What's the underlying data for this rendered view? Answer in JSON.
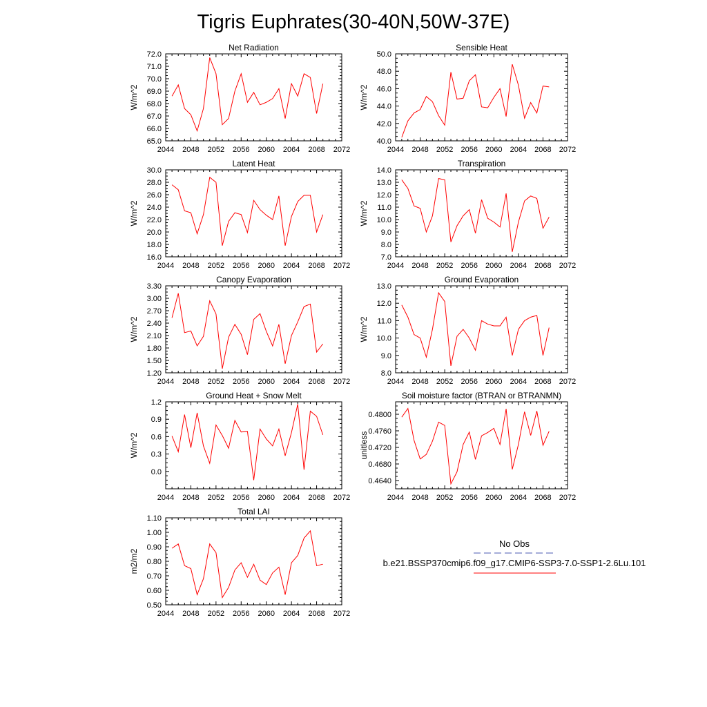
{
  "figure": {
    "title": "Tigris Euphrates(30-40N,50W-37E)"
  },
  "legend": {
    "entries": [
      {
        "label": "No Obs",
        "color": "#4a5ab0",
        "dash": true
      },
      {
        "label": "b.e21.BSSP370cmip6.f09_g17.CMIP6-SSP3-7.0-SSP1-2.6Lu.101",
        "color": "#ff0000",
        "dash": false
      }
    ]
  },
  "chart_data": [
    {
      "type": "line",
      "title": "Net Radiation",
      "ylabel": "W/m^2",
      "xlim": [
        2044,
        2072
      ],
      "xticks": [
        2044,
        2048,
        2052,
        2056,
        2060,
        2064,
        2068,
        2072
      ],
      "ylim": [
        65.0,
        72.0
      ],
      "yticks": [
        "65.0",
        "66.0",
        "67.0",
        "68.0",
        "69.0",
        "70.0",
        "71.0",
        "72.0"
      ],
      "series": [
        {
          "color": "#ff0000",
          "x": [
            2045,
            2046,
            2047,
            2048,
            2049,
            2050,
            2051,
            2052,
            2053,
            2054,
            2055,
            2056,
            2057,
            2058,
            2059,
            2060,
            2061,
            2062,
            2063,
            2064,
            2065,
            2066,
            2067,
            2068,
            2069
          ],
          "values": [
            68.6,
            69.5,
            67.6,
            67.1,
            65.8,
            67.6,
            71.7,
            70.4,
            66.3,
            66.8,
            69.0,
            70.4,
            68.1,
            68.9,
            67.9,
            68.1,
            68.4,
            69.2,
            66.8,
            69.6,
            68.6,
            70.4,
            70.1,
            67.2,
            69.6
          ]
        }
      ]
    },
    {
      "type": "line",
      "title": "Sensible Heat",
      "ylabel": "W/m^2",
      "xlim": [
        2044,
        2072
      ],
      "xticks": [
        2044,
        2048,
        2052,
        2056,
        2060,
        2064,
        2068,
        2072
      ],
      "ylim": [
        40.0,
        50.0
      ],
      "yticks": [
        "40.0",
        "42.0",
        "44.0",
        "46.0",
        "48.0",
        "50.0"
      ],
      "series": [
        {
          "color": "#ff0000",
          "x": [
            2045,
            2046,
            2047,
            2048,
            2049,
            2050,
            2051,
            2052,
            2053,
            2054,
            2055,
            2056,
            2057,
            2058,
            2059,
            2060,
            2061,
            2062,
            2063,
            2064,
            2065,
            2066,
            2067,
            2068,
            2069
          ],
          "values": [
            40.4,
            42.3,
            43.2,
            43.6,
            45.1,
            44.5,
            42.9,
            41.8,
            47.9,
            44.8,
            44.9,
            46.9,
            47.6,
            43.9,
            43.8,
            45.0,
            46.0,
            42.8,
            48.8,
            46.4,
            42.6,
            44.4,
            43.2,
            46.3,
            46.2
          ]
        }
      ]
    },
    {
      "type": "line",
      "title": "Latent Heat",
      "ylabel": "W/m^2",
      "xlim": [
        2044,
        2072
      ],
      "xticks": [
        2044,
        2048,
        2052,
        2056,
        2060,
        2064,
        2068,
        2072
      ],
      "ylim": [
        16.0,
        30.0
      ],
      "yticks": [
        "16.0",
        "18.0",
        "20.0",
        "22.0",
        "24.0",
        "26.0",
        "28.0",
        "30.0"
      ],
      "series": [
        {
          "color": "#ff0000",
          "x": [
            2045,
            2046,
            2047,
            2048,
            2049,
            2050,
            2051,
            2052,
            2053,
            2054,
            2055,
            2056,
            2057,
            2058,
            2059,
            2060,
            2061,
            2062,
            2063,
            2064,
            2065,
            2066,
            2067,
            2068,
            2069
          ],
          "values": [
            27.6,
            26.8,
            23.4,
            23.1,
            19.7,
            22.8,
            28.8,
            28.0,
            17.8,
            21.7,
            23.1,
            22.8,
            19.9,
            25.1,
            23.6,
            22.7,
            22.0,
            25.8,
            17.8,
            22.5,
            24.9,
            25.9,
            25.9,
            20.0,
            22.8
          ]
        }
      ]
    },
    {
      "type": "line",
      "title": "Transpiration",
      "ylabel": "W/m^2",
      "xlim": [
        2044,
        2072
      ],
      "xticks": [
        2044,
        2048,
        2052,
        2056,
        2060,
        2064,
        2068,
        2072
      ],
      "ylim": [
        7.0,
        14.0
      ],
      "yticks": [
        "7.0",
        "8.0",
        "9.0",
        "10.0",
        "11.0",
        "12.0",
        "13.0",
        "14.0"
      ],
      "series": [
        {
          "color": "#ff0000",
          "x": [
            2045,
            2046,
            2047,
            2048,
            2049,
            2050,
            2051,
            2052,
            2053,
            2054,
            2055,
            2056,
            2057,
            2058,
            2059,
            2060,
            2061,
            2062,
            2063,
            2064,
            2065,
            2066,
            2067,
            2068,
            2069
          ],
          "values": [
            13.2,
            12.5,
            11.1,
            10.9,
            9.0,
            10.3,
            13.3,
            13.2,
            8.2,
            9.5,
            10.3,
            10.8,
            8.9,
            11.6,
            10.1,
            9.8,
            9.4,
            12.1,
            7.4,
            9.8,
            11.5,
            11.9,
            11.7,
            9.3,
            10.2
          ]
        }
      ]
    },
    {
      "type": "line",
      "title": "Canopy Evaporation",
      "ylabel": "W/m^2",
      "xlim": [
        2044,
        2072
      ],
      "xticks": [
        2044,
        2048,
        2052,
        2056,
        2060,
        2064,
        2068,
        2072
      ],
      "ylim": [
        1.2,
        3.3
      ],
      "yticks": [
        "1.20",
        "1.50",
        "1.80",
        "2.10",
        "2.40",
        "2.70",
        "3.00",
        "3.30"
      ],
      "series": [
        {
          "color": "#ff0000",
          "x": [
            2045,
            2046,
            2047,
            2048,
            2049,
            2050,
            2051,
            2052,
            2053,
            2054,
            2055,
            2056,
            2057,
            2058,
            2059,
            2060,
            2061,
            2062,
            2063,
            2064,
            2065,
            2066,
            2067,
            2068,
            2069
          ],
          "values": [
            2.53,
            3.12,
            2.17,
            2.21,
            1.85,
            2.08,
            2.94,
            2.62,
            1.3,
            2.06,
            2.37,
            2.13,
            1.64,
            2.49,
            2.63,
            2.2,
            1.85,
            2.37,
            1.42,
            2.1,
            2.43,
            2.8,
            2.86,
            1.7,
            1.9
          ]
        }
      ]
    },
    {
      "type": "line",
      "title": "Ground Evaporation",
      "ylabel": "W/m^2",
      "xlim": [
        2044,
        2072
      ],
      "xticks": [
        2044,
        2048,
        2052,
        2056,
        2060,
        2064,
        2068,
        2072
      ],
      "ylim": [
        8.0,
        13.0
      ],
      "yticks": [
        "8.0",
        "9.0",
        "10.0",
        "11.0",
        "12.0",
        "13.0"
      ],
      "series": [
        {
          "color": "#ff0000",
          "x": [
            2045,
            2046,
            2047,
            2048,
            2049,
            2050,
            2051,
            2052,
            2053,
            2054,
            2055,
            2056,
            2057,
            2058,
            2059,
            2060,
            2061,
            2062,
            2063,
            2064,
            2065,
            2066,
            2067,
            2068,
            2069
          ],
          "values": [
            11.9,
            11.2,
            10.2,
            10.0,
            8.9,
            10.5,
            12.6,
            12.1,
            8.4,
            10.1,
            10.5,
            10.0,
            9.3,
            11.0,
            10.8,
            10.7,
            10.7,
            11.2,
            9.0,
            10.5,
            11.0,
            11.2,
            11.3,
            9.0,
            10.6
          ]
        }
      ]
    },
    {
      "type": "line",
      "title": "Ground Heat + Snow Melt",
      "ylabel": "W/m^2",
      "xlim": [
        2044,
        2072
      ],
      "xticks": [
        2044,
        2048,
        2052,
        2056,
        2060,
        2064,
        2068,
        2072
      ],
      "ylim": [
        -0.3,
        1.2
      ],
      "yticks": [
        "0.0",
        "0.3",
        "0.6",
        "0.9",
        "1.2"
      ],
      "series": [
        {
          "color": "#ff0000",
          "x": [
            2045,
            2046,
            2047,
            2048,
            2049,
            2050,
            2051,
            2052,
            2053,
            2054,
            2055,
            2056,
            2057,
            2058,
            2059,
            2060,
            2061,
            2062,
            2063,
            2064,
            2065,
            2066,
            2067,
            2068,
            2069
          ],
          "values": [
            0.61,
            0.34,
            0.98,
            0.41,
            1.01,
            0.44,
            0.14,
            0.8,
            0.62,
            0.4,
            0.88,
            0.68,
            0.69,
            -0.15,
            0.73,
            0.56,
            0.44,
            0.73,
            0.27,
            0.67,
            1.16,
            0.03,
            1.04,
            0.95,
            0.63
          ]
        }
      ]
    },
    {
      "type": "line",
      "title": "Soil moisture factor (BTRAN or BTRANMN)",
      "ylabel": "unitless",
      "xlim": [
        2044,
        2072
      ],
      "xticks": [
        2044,
        2048,
        2052,
        2056,
        2060,
        2064,
        2068,
        2072
      ],
      "ylim": [
        0.462,
        0.483
      ],
      "yticks": [
        "0.4640",
        "0.4680",
        "0.4720",
        "0.4760",
        "0.4800"
      ],
      "series": [
        {
          "color": "#ff0000",
          "x": [
            2045,
            2046,
            2047,
            2048,
            2049,
            2050,
            2051,
            2052,
            2053,
            2054,
            2055,
            2056,
            2057,
            2058,
            2059,
            2060,
            2061,
            2062,
            2063,
            2064,
            2065,
            2066,
            2067,
            2068,
            2069
          ],
          "values": [
            0.4793,
            0.4814,
            0.4737,
            0.4692,
            0.4703,
            0.4735,
            0.4781,
            0.4773,
            0.4632,
            0.4661,
            0.4727,
            0.4757,
            0.4691,
            0.4748,
            0.4756,
            0.4766,
            0.4727,
            0.4813,
            0.4667,
            0.4727,
            0.4806,
            0.4749,
            0.4808,
            0.4725,
            0.4759
          ]
        }
      ]
    },
    {
      "type": "line",
      "title": "Total LAI",
      "ylabel": "m2/m2",
      "xlim": [
        2044,
        2072
      ],
      "xticks": [
        2044,
        2048,
        2052,
        2056,
        2060,
        2064,
        2068,
        2072
      ],
      "ylim": [
        0.5,
        1.1
      ],
      "yticks": [
        "0.50",
        "0.60",
        "0.70",
        "0.80",
        "0.90",
        "1.00",
        "1.10"
      ],
      "series": [
        {
          "color": "#ff0000",
          "x": [
            2045,
            2046,
            2047,
            2048,
            2049,
            2050,
            2051,
            2052,
            2053,
            2054,
            2055,
            2056,
            2057,
            2058,
            2059,
            2060,
            2061,
            2062,
            2063,
            2064,
            2065,
            2066,
            2067,
            2068,
            2069
          ],
          "values": [
            0.89,
            0.92,
            0.77,
            0.75,
            0.57,
            0.68,
            0.92,
            0.86,
            0.55,
            0.62,
            0.74,
            0.79,
            0.69,
            0.78,
            0.67,
            0.64,
            0.72,
            0.76,
            0.57,
            0.79,
            0.84,
            0.96,
            1.01,
            0.77,
            0.78
          ]
        }
      ]
    }
  ]
}
